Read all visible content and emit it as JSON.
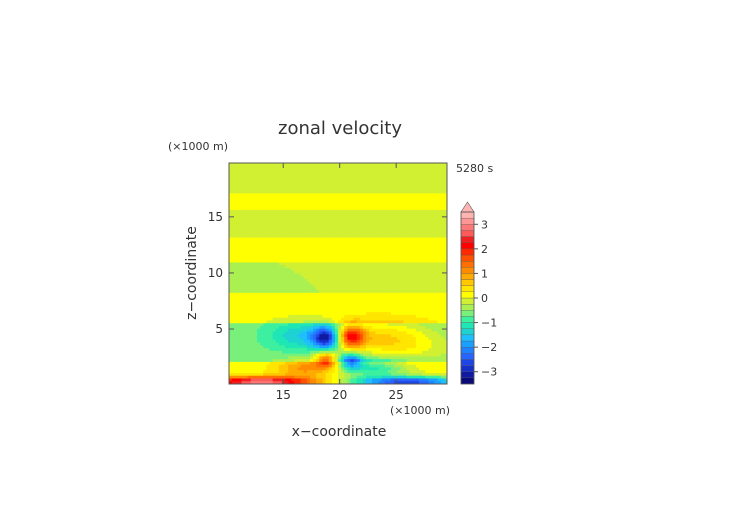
{
  "chart_data": {
    "type": "heatmap",
    "title": "zonal velocity",
    "time_label": "5280 s",
    "xlabel": "x−coordinate",
    "ylabel": "z−coordinate",
    "x_unit": "(×1000 m)",
    "y_unit": "(×1000 m)",
    "xlim": [
      10.2,
      29.5
    ],
    "ylim": [
      0.1,
      19.8
    ],
    "x_ticks": [
      15,
      20,
      25
    ],
    "y_ticks": [
      5,
      10,
      15
    ],
    "colorbar": {
      "levels": [
        -3.5,
        -3.25,
        -3.0,
        -2.75,
        -2.5,
        -2.25,
        -2.0,
        -1.75,
        -1.5,
        -1.25,
        -1.0,
        -0.75,
        -0.5,
        -0.25,
        0.0,
        0.25,
        0.5,
        0.75,
        1.0,
        1.25,
        1.5,
        1.75,
        2.0,
        2.25,
        2.5,
        2.75,
        3.0,
        3.25,
        3.5
      ],
      "colors": [
        "#0a0a78",
        "#0f1aa0",
        "#1430c8",
        "#1e46e6",
        "#2864ff",
        "#1e82ff",
        "#1aa0ff",
        "#1ebeff",
        "#1ed2d2",
        "#1ee6b4",
        "#3cf0a0",
        "#78f07a",
        "#aaf050",
        "#d2f032",
        "#ffff00",
        "#ffe600",
        "#ffc800",
        "#ffaa00",
        "#ff8c00",
        "#ff6e00",
        "#ff5000",
        "#ff2800",
        "#ff0000",
        "#f01e1e",
        "#ff5a5a",
        "#ff7878",
        "#ff9696",
        "#ffb4b4"
      ],
      "tick_labels": [
        "3",
        "2",
        "1",
        "0",
        "−1",
        "−2",
        "−3"
      ],
      "tick_values": [
        3,
        2,
        1,
        0,
        -1,
        -2,
        -3
      ],
      "over_color": "#ffb4b4"
    },
    "field": {
      "background_value": 0.12,
      "bands": [
        {
          "z0": 17.2,
          "z1": 19.8,
          "value": -0.25
        },
        {
          "z0": 13.2,
          "z1": 15.7,
          "value": -0.25
        },
        {
          "z0": 8.2,
          "z1": 11.0,
          "value": -0.25
        },
        {
          "z0": 2.0,
          "z1": 5.5,
          "value": -0.6
        }
      ],
      "features": [
        {
          "x": 18.8,
          "z": 4.2,
          "value": -2.3,
          "rx": 1.2,
          "rz": 1.0
        },
        {
          "x": 21.0,
          "z": 4.3,
          "value": 2.3,
          "rx": 1.2,
          "rz": 1.0
        },
        {
          "x": 17.0,
          "z": 4.4,
          "value": -1.0,
          "rx": 3.2,
          "rz": 1.3
        },
        {
          "x": 23.5,
          "z": 4.4,
          "value": 1.0,
          "rx": 4.5,
          "rz": 1.4
        },
        {
          "x": 26.0,
          "z": 3.2,
          "value": 0.5,
          "rx": 5.0,
          "rz": 1.2
        },
        {
          "x": 18.8,
          "z": 2.3,
          "value": 1.8,
          "rx": 1.0,
          "rz": 0.7
        },
        {
          "x": 21.0,
          "z": 2.1,
          "value": -1.8,
          "rx": 1.0,
          "rz": 0.7
        },
        {
          "x": 17.0,
          "z": 1.5,
          "value": 1.0,
          "rx": 2.5,
          "rz": 0.8
        },
        {
          "x": 23.0,
          "z": 1.5,
          "value": -1.2,
          "rx": 3.0,
          "rz": 0.8
        },
        {
          "x": 13.0,
          "z": 0.3,
          "value": 2.8,
          "rx": 5.0,
          "rz": 0.45
        },
        {
          "x": 26.0,
          "z": 0.3,
          "value": -2.8,
          "rx": 5.0,
          "rz": 0.45
        }
      ]
    }
  }
}
